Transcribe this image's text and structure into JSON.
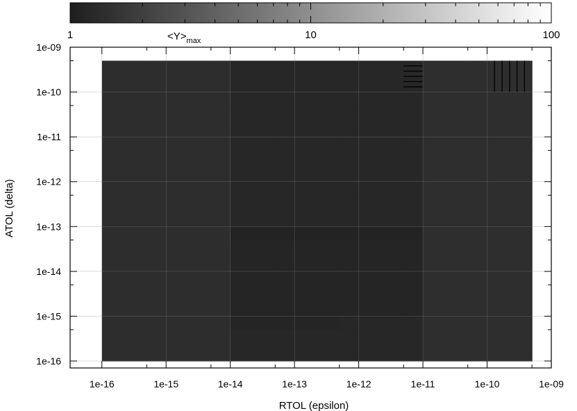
{
  "chart_data": {
    "type": "heatmap",
    "xlabel": "RTOL (epsilon)",
    "ylabel": "ATOL (delta)",
    "x_scale": "log",
    "y_scale": "log",
    "xlim": [
      3.2e-17,
      1e-09
    ],
    "ylim": [
      7e-17,
      1e-09
    ],
    "x_ticks": [
      "1e-16",
      "1e-15",
      "1e-14",
      "1e-13",
      "1e-12",
      "1e-11",
      "1e-10",
      "1e-09"
    ],
    "y_ticks": [
      "1e-16",
      "1e-15",
      "1e-14",
      "1e-13",
      "1e-12",
      "1e-11",
      "1e-10",
      "1e-09"
    ],
    "x_edges": [
      1e-16,
      5e-16,
      1e-15,
      5e-15,
      1e-14,
      5e-14,
      1e-13,
      5e-13,
      1e-12,
      5e-12,
      1e-11,
      5e-11,
      1e-10,
      5e-10
    ],
    "y_edges": [
      1e-16,
      5e-16,
      1e-15,
      5e-15,
      1e-14,
      5e-14,
      1e-13,
      5e-13,
      1e-12,
      5e-12,
      1e-11,
      5e-11,
      1e-10,
      5e-10
    ],
    "colorbar": {
      "title_main": "<Y>",
      "title_sub": "max",
      "scale": "log",
      "range": [
        1,
        100
      ],
      "labels": [
        "1",
        "10",
        "100"
      ]
    },
    "grid": true,
    "values": [
      [
        1.35,
        1.35,
        1.35,
        1.35,
        1.2,
        1.2,
        1.2,
        1.2,
        1.2,
        1.2,
        1.4,
        1.4,
        1.4
      ],
      [
        1.35,
        1.35,
        1.35,
        1.35,
        1.15,
        1.15,
        1.15,
        1.2,
        1.2,
        1.2,
        1.4,
        1.4,
        1.4
      ],
      [
        1.35,
        1.35,
        1.35,
        1.35,
        1.15,
        1.15,
        1.15,
        1.15,
        1.15,
        1.15,
        1.4,
        1.4,
        1.4
      ],
      [
        1.35,
        1.35,
        1.35,
        1.35,
        1.15,
        1.15,
        1.15,
        1.15,
        1.15,
        1.15,
        1.4,
        1.4,
        1.4
      ],
      [
        1.35,
        1.35,
        1.35,
        1.35,
        1.15,
        1.15,
        1.15,
        1.15,
        1.15,
        1.15,
        1.4,
        1.4,
        1.4
      ],
      [
        1.35,
        1.35,
        1.35,
        1.35,
        1.1,
        1.1,
        1.1,
        1.1,
        1.1,
        1.1,
        1.4,
        1.4,
        1.4
      ],
      [
        1.35,
        1.35,
        1.35,
        1.35,
        1.2,
        1.2,
        1.2,
        1.2,
        1.2,
        1.2,
        1.4,
        1.4,
        1.4
      ],
      [
        1.35,
        1.35,
        1.35,
        1.35,
        1.2,
        1.2,
        1.2,
        1.2,
        1.2,
        1.2,
        1.4,
        1.4,
        1.4
      ],
      [
        1.35,
        1.35,
        1.35,
        1.35,
        1.2,
        1.2,
        1.2,
        1.2,
        1.2,
        1.2,
        1.4,
        1.4,
        1.4
      ],
      [
        1.35,
        1.35,
        1.35,
        1.35,
        1.2,
        1.2,
        1.2,
        1.2,
        1.2,
        1.2,
        1.4,
        1.4,
        1.4
      ],
      [
        1.35,
        1.35,
        1.35,
        1.35,
        1.2,
        1.2,
        1.2,
        1.2,
        1.2,
        1.2,
        1.4,
        1.4,
        1.4
      ],
      [
        1.35,
        1.35,
        1.35,
        1.35,
        1.2,
        1.2,
        1.2,
        1.2,
        1.2,
        1.2,
        1.4,
        1.4,
        1.4
      ],
      [
        1.35,
        1.35,
        1.35,
        1.35,
        1.2,
        1.2,
        1.2,
        1.2,
        1.2,
        1.2,
        1.4,
        1.4,
        1.4
      ]
    ],
    "hatched_cells": [
      {
        "col": 9,
        "row": 12,
        "pattern": "horizontal"
      },
      {
        "col": 12,
        "row": 12,
        "pattern": "vertical"
      }
    ]
  }
}
